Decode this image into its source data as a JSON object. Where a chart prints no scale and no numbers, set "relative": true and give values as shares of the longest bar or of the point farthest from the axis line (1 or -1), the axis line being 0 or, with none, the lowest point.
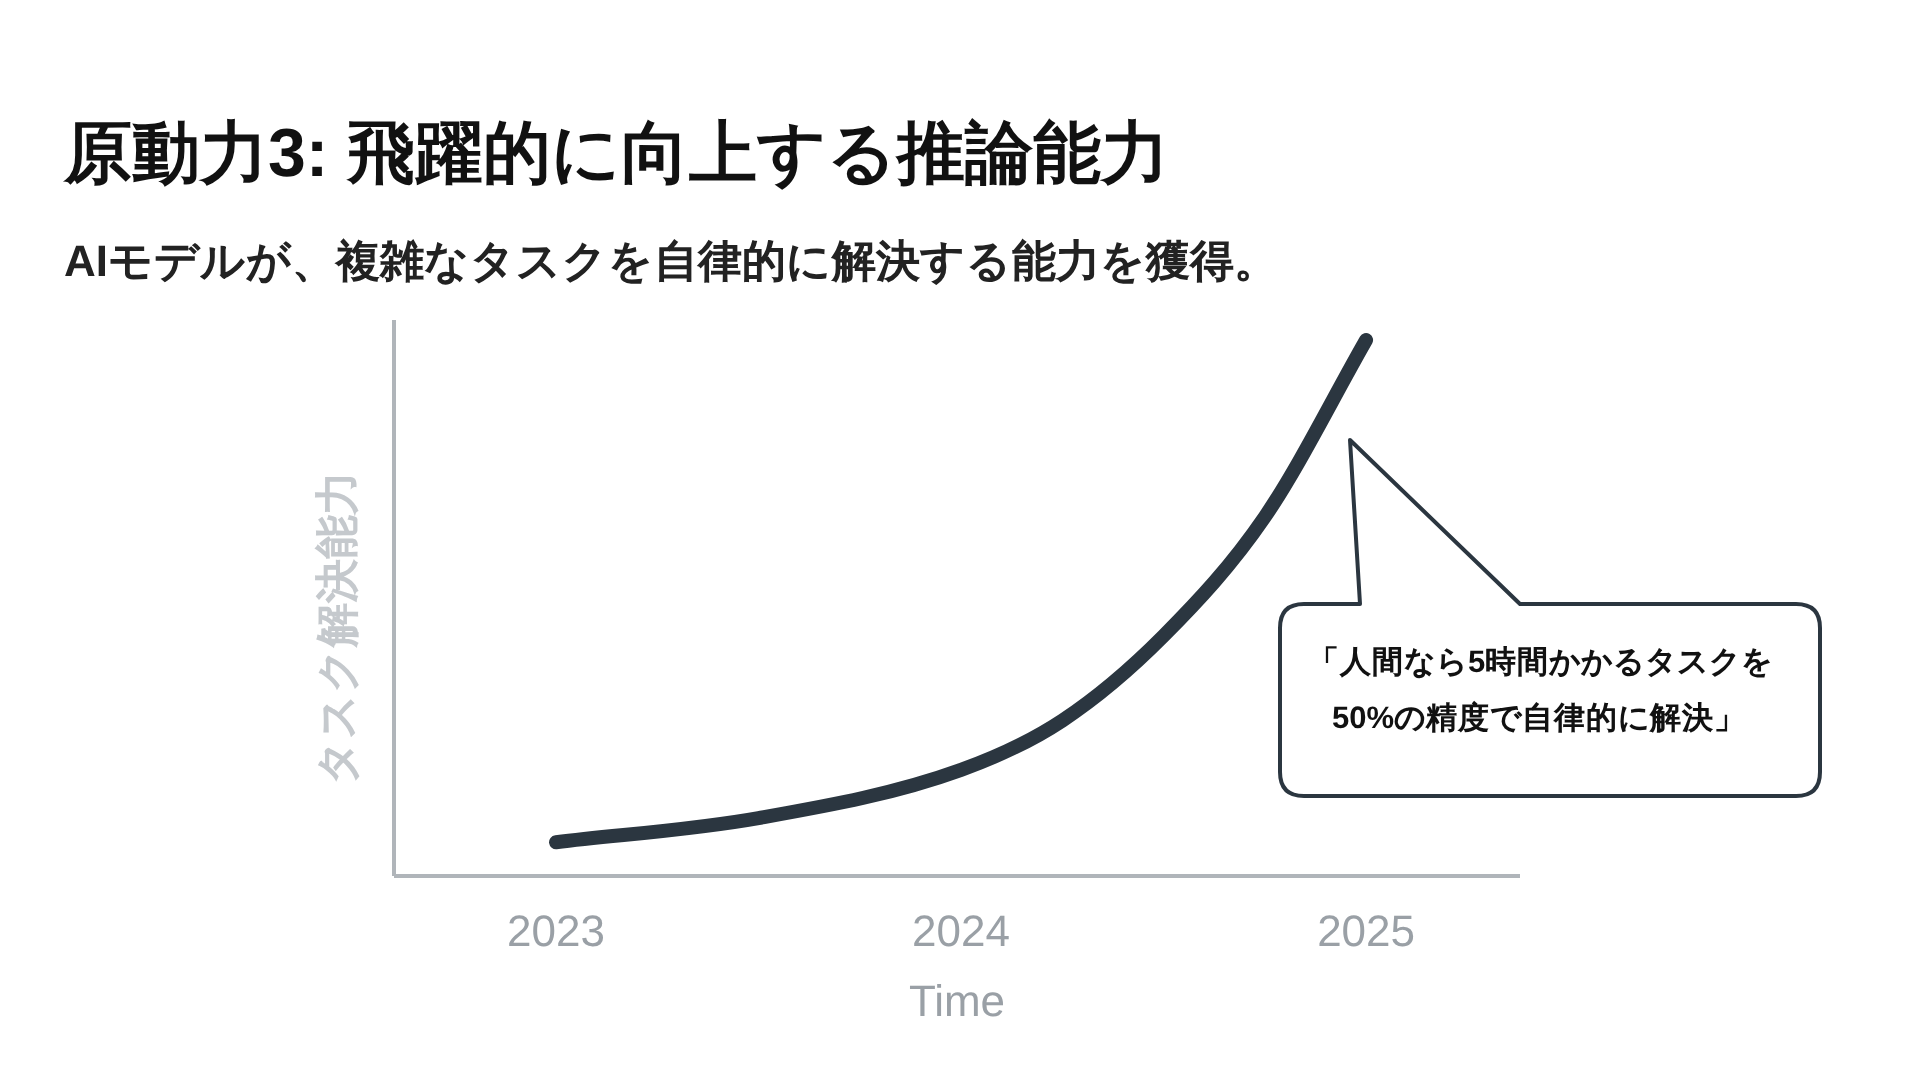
{
  "chart_data": {
    "type": "line",
    "title": "原動力3: 飛躍的に向上する推論能力",
    "subtitle": "AIモデルが、複雑なタスクを自律的に解決する能力を獲得。",
    "xlabel": "Time",
    "ylabel": "タスク解決能力",
    "relative": true,
    "x": [
      2023,
      2023.5,
      2024,
      2024.25,
      2024.5,
      2024.75,
      2025
    ],
    "xlim": [
      2022.6,
      2025.38
    ],
    "xticks": [
      2023,
      2024,
      2025
    ],
    "series": [
      {
        "color": "#2b3640",
        "values": [
          0.063,
          0.108,
          0.198,
          0.29,
          0.448,
          0.67,
          1.0
        ]
      }
    ],
    "annotations": [
      "「人間なら5時間かかるタスクを\n50%の精度で自律的に解決」"
    ]
  }
}
